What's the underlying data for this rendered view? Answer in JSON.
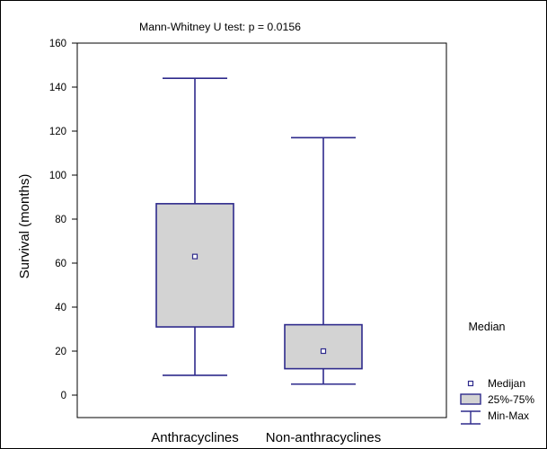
{
  "chart_data": {
    "type": "boxplot",
    "title": "Mann-Whitney U test: p = 0.0156",
    "ylabel": "Survival (months)",
    "xlabel": "",
    "ylim": [
      -10,
      160
    ],
    "yticks": [
      0,
      20,
      40,
      60,
      80,
      100,
      120,
      140,
      160
    ],
    "grid": false,
    "categories": [
      "Anthracyclines",
      "Non-anthracyclines"
    ],
    "boxes": [
      {
        "category": "Anthracyclines",
        "min": 9,
        "q1": 31,
        "median": 63,
        "q3": 87,
        "max": 144
      },
      {
        "category": "Non-anthracyclines",
        "min": 5,
        "q1": 12,
        "median": 20,
        "q3": 32,
        "max": 117
      }
    ],
    "side_label": "Median",
    "legend": {
      "placement": "bottom-right",
      "entries": [
        {
          "symbol": "median-marker",
          "label": "Medijan"
        },
        {
          "symbol": "box",
          "label": "25%-75%"
        },
        {
          "symbol": "whisker",
          "label": "Min-Max"
        }
      ]
    },
    "colors": {
      "stroke": "#2e2a8c",
      "box_fill": "#d3d3d3",
      "axis": "#000000",
      "background": "#ffffff",
      "median_marker_fill": "#ffffff"
    }
  }
}
